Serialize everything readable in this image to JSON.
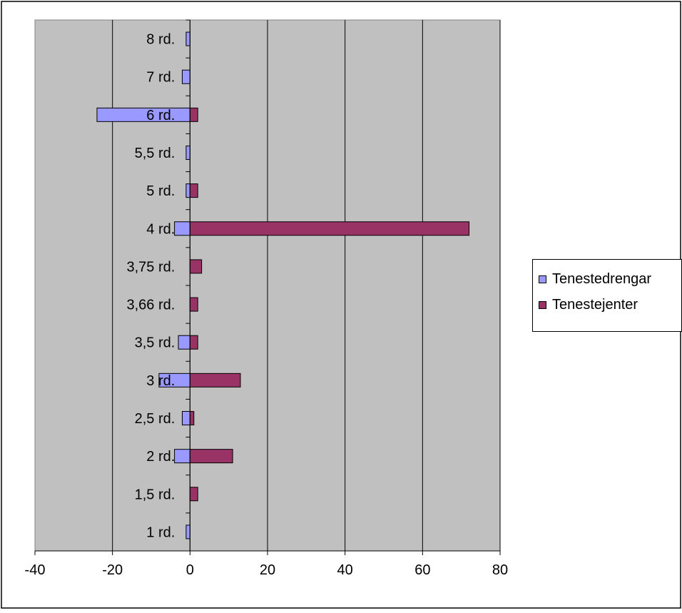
{
  "chart_data": {
    "type": "bar",
    "orientation": "horizontal",
    "categories": [
      "1 rd.",
      "1,5 rd.",
      "2 rd.",
      "2,5 rd.",
      "3 rd.",
      "3,5 rd.",
      "3,66 rd.",
      "3,75 rd.",
      "4 rd.",
      "5 rd.",
      "5,5 rd.",
      "6 rd.",
      "7 rd.",
      "8 rd."
    ],
    "series": [
      {
        "name": "Tenestedrengar",
        "color": "#9999ff",
        "values": [
          -1,
          0,
          -4,
          -2,
          -8,
          -3,
          0,
          0,
          -4,
          -1,
          -1,
          -24,
          -2,
          -1
        ]
      },
      {
        "name": "Tenestejenter",
        "color": "#993366",
        "values": [
          0,
          2,
          11,
          1,
          13,
          2,
          2,
          3,
          72,
          2,
          0,
          2,
          0,
          0
        ]
      }
    ],
    "xlim": [
      -40,
      80
    ],
    "xticks": [
      "-40",
      "-20",
      "0",
      "20",
      "40",
      "60",
      "80"
    ],
    "plot_background": "#c0c0c0",
    "gridlines": true,
    "legend_position": "right"
  }
}
